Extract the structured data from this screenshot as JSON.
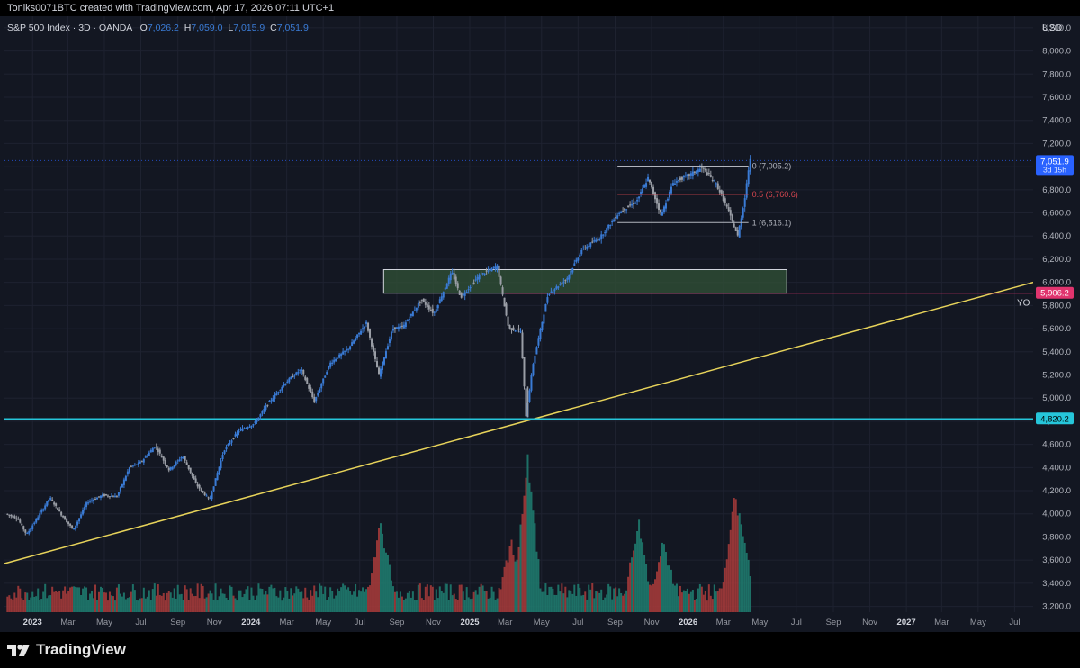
{
  "header": {
    "created_text": "Toniks0071BTC created with TradingView.com, Apr 17, 2026 07:11 UTC+1"
  },
  "legend": {
    "symbol": "S&P 500 Index · 3D · OANDA",
    "open_label": "O",
    "open": "7,026.2",
    "high_label": "H",
    "high": "7,059.0",
    "low_label": "L",
    "low": "7,015.9",
    "close_label": "C",
    "close": "7,051.9"
  },
  "colors": {
    "background": "#131722",
    "up": "#3a7bd5",
    "down": "#9a9ea6",
    "vol_up": "#1f7a6e",
    "vol_down": "#a33a3a",
    "trendline": "#e7d35a",
    "support": "#26c6da",
    "yo_line": "#e0346e",
    "zone_fill": "#2f4f36",
    "fib_0": "#b2b5be",
    "fib_05": "#d6464f",
    "fib_1": "#b2b5be",
    "price_badge": "#2962ff"
  },
  "footer": {
    "brand": "TradingView"
  },
  "chart_data": {
    "type": "candlestick",
    "title": "S&P 500 Index · 3D · OANDA",
    "currency_label": "USD",
    "ylim": [
      3150,
      8300
    ],
    "y_ticks": [
      3200,
      3400,
      3600,
      3800,
      4000,
      4200,
      4400,
      4600,
      4800,
      5000,
      5200,
      5400,
      5600,
      5800,
      6000,
      6200,
      6400,
      6600,
      6800,
      7000,
      7200,
      7400,
      7600,
      7800,
      8000,
      8200
    ],
    "y_tick_labels": [
      "3,200.0",
      "3,400.0",
      "3,600.0",
      "3,800.0",
      "4,000.0",
      "4,200.0",
      "4,400.0",
      "4,600.0",
      "4,800.0",
      "5,000.0",
      "5,200.0",
      "5,400.0",
      "5,600.0",
      "5,800.0",
      "6,000.0",
      "6,200.0",
      "6,400.0",
      "6,600.0",
      "6,800.0",
      "7,000.0",
      "7,200.0",
      "7,400.0",
      "7,600.0",
      "7,800.0",
      "8,000.0",
      "8,200.0"
    ],
    "x_range": [
      "2022-11-15",
      "2027-08-01"
    ],
    "x_ticks": [
      {
        "date": "2023-01-01",
        "label": "2023",
        "bold": true
      },
      {
        "date": "2023-03-01",
        "label": "Mar"
      },
      {
        "date": "2023-05-01",
        "label": "May"
      },
      {
        "date": "2023-07-01",
        "label": "Jul"
      },
      {
        "date": "2023-09-01",
        "label": "Sep"
      },
      {
        "date": "2023-11-01",
        "label": "Nov"
      },
      {
        "date": "2024-01-01",
        "label": "2024",
        "bold": true
      },
      {
        "date": "2024-03-01",
        "label": "Mar"
      },
      {
        "date": "2024-05-01",
        "label": "May"
      },
      {
        "date": "2024-07-01",
        "label": "Jul"
      },
      {
        "date": "2024-09-01",
        "label": "Sep"
      },
      {
        "date": "2024-11-01",
        "label": "Nov"
      },
      {
        "date": "2025-01-01",
        "label": "2025",
        "bold": true
      },
      {
        "date": "2025-03-01",
        "label": "Mar"
      },
      {
        "date": "2025-05-01",
        "label": "May"
      },
      {
        "date": "2025-07-01",
        "label": "Jul"
      },
      {
        "date": "2025-09-01",
        "label": "Sep"
      },
      {
        "date": "2025-11-01",
        "label": "Nov"
      },
      {
        "date": "2026-01-01",
        "label": "2026",
        "bold": true
      },
      {
        "date": "2026-03-01",
        "label": "Mar"
      },
      {
        "date": "2026-05-01",
        "label": "May"
      },
      {
        "date": "2026-07-01",
        "label": "Jul"
      },
      {
        "date": "2026-09-01",
        "label": "Sep"
      },
      {
        "date": "2026-11-01",
        "label": "Nov"
      },
      {
        "date": "2027-01-01",
        "label": "2027",
        "bold": true
      },
      {
        "date": "2027-03-01",
        "label": "Mar"
      },
      {
        "date": "2027-05-01",
        "label": "May"
      },
      {
        "date": "2027-07-01",
        "label": "Jul"
      }
    ],
    "price_path": [
      [
        "2022-11-20",
        4000
      ],
      [
        "2022-12-10",
        3960
      ],
      [
        "2022-12-25",
        3820
      ],
      [
        "2023-01-10",
        3950
      ],
      [
        "2023-02-02",
        4140
      ],
      [
        "2023-02-20",
        4000
      ],
      [
        "2023-03-13",
        3860
      ],
      [
        "2023-04-05",
        4100
      ],
      [
        "2023-05-01",
        4160
      ],
      [
        "2023-05-25",
        4150
      ],
      [
        "2023-06-15",
        4400
      ],
      [
        "2023-07-05",
        4450
      ],
      [
        "2023-07-28",
        4590
      ],
      [
        "2023-08-20",
        4380
      ],
      [
        "2023-09-12",
        4500
      ],
      [
        "2023-10-05",
        4250
      ],
      [
        "2023-10-27",
        4120
      ],
      [
        "2023-11-20",
        4550
      ],
      [
        "2023-12-15",
        4720
      ],
      [
        "2024-01-10",
        4780
      ],
      [
        "2024-02-01",
        4950
      ],
      [
        "2024-03-01",
        5130
      ],
      [
        "2024-03-28",
        5250
      ],
      [
        "2024-04-19",
        4970
      ],
      [
        "2024-05-15",
        5300
      ],
      [
        "2024-06-15",
        5430
      ],
      [
        "2024-07-15",
        5650
      ],
      [
        "2024-08-05",
        5200
      ],
      [
        "2024-08-28",
        5600
      ],
      [
        "2024-09-15",
        5620
      ],
      [
        "2024-10-15",
        5850
      ],
      [
        "2024-11-05",
        5730
      ],
      [
        "2024-12-05",
        6090
      ],
      [
        "2024-12-20",
        5870
      ],
      [
        "2025-01-20",
        6060
      ],
      [
        "2025-02-19",
        6140
      ],
      [
        "2025-03-10",
        5600
      ],
      [
        "2025-03-30",
        5580
      ],
      [
        "2025-04-08",
        4850
      ],
      [
        "2025-04-20",
        5300
      ],
      [
        "2025-05-15",
        5900
      ],
      [
        "2025-06-15",
        6030
      ],
      [
        "2025-07-10",
        6280
      ],
      [
        "2025-08-10",
        6390
      ],
      [
        "2025-09-10",
        6600
      ],
      [
        "2025-10-10",
        6700
      ],
      [
        "2025-10-29",
        6900
      ],
      [
        "2025-11-20",
        6580
      ],
      [
        "2025-12-10",
        6860
      ],
      [
        "2026-01-10",
        6940
      ],
      [
        "2026-01-28",
        6990
      ],
      [
        "2026-02-20",
        6850
      ],
      [
        "2026-03-10",
        6650
      ],
      [
        "2026-03-28",
        6400
      ],
      [
        "2026-04-08",
        6700
      ],
      [
        "2026-04-17",
        7051.9
      ]
    ],
    "volume_spikes": [
      [
        "2024-08-05",
        0.58
      ],
      [
        "2025-04-08",
        1.0
      ],
      [
        "2025-03-12",
        0.45
      ],
      [
        "2025-10-10",
        0.58
      ],
      [
        "2025-11-20",
        0.45
      ],
      [
        "2026-03-20",
        0.75
      ],
      [
        "2026-03-28",
        0.68
      ]
    ],
    "fib_levels": [
      {
        "level": "0",
        "value": 7005.2,
        "label": "0 (7,005.2)"
      },
      {
        "level": "0.5",
        "value": 6760.6,
        "label": "0.5 (6,760.6)"
      },
      {
        "level": "1",
        "value": 6516.1,
        "label": "1 (6,516.1)"
      }
    ],
    "fib_x_range": [
      "2025-09-05",
      "2026-04-12"
    ],
    "zone": {
      "x_start": "2024-08-10",
      "x_end": "2026-06-15",
      "y_low": 5906.2,
      "y_high": 6110
    },
    "trendline": {
      "start": [
        "2022-11-15",
        3570
      ],
      "end": [
        "2027-08-01",
        6000
      ]
    },
    "support_level": {
      "value": 4820.2,
      "label": "4,820.2"
    },
    "yo_level": {
      "value": 5906.2,
      "label": "5,906.2",
      "text": "YO",
      "x_start": "2025-03-01"
    },
    "last_price": {
      "value": 7051.9,
      "label": "7,051.9",
      "countdown": "3d 15h"
    }
  }
}
